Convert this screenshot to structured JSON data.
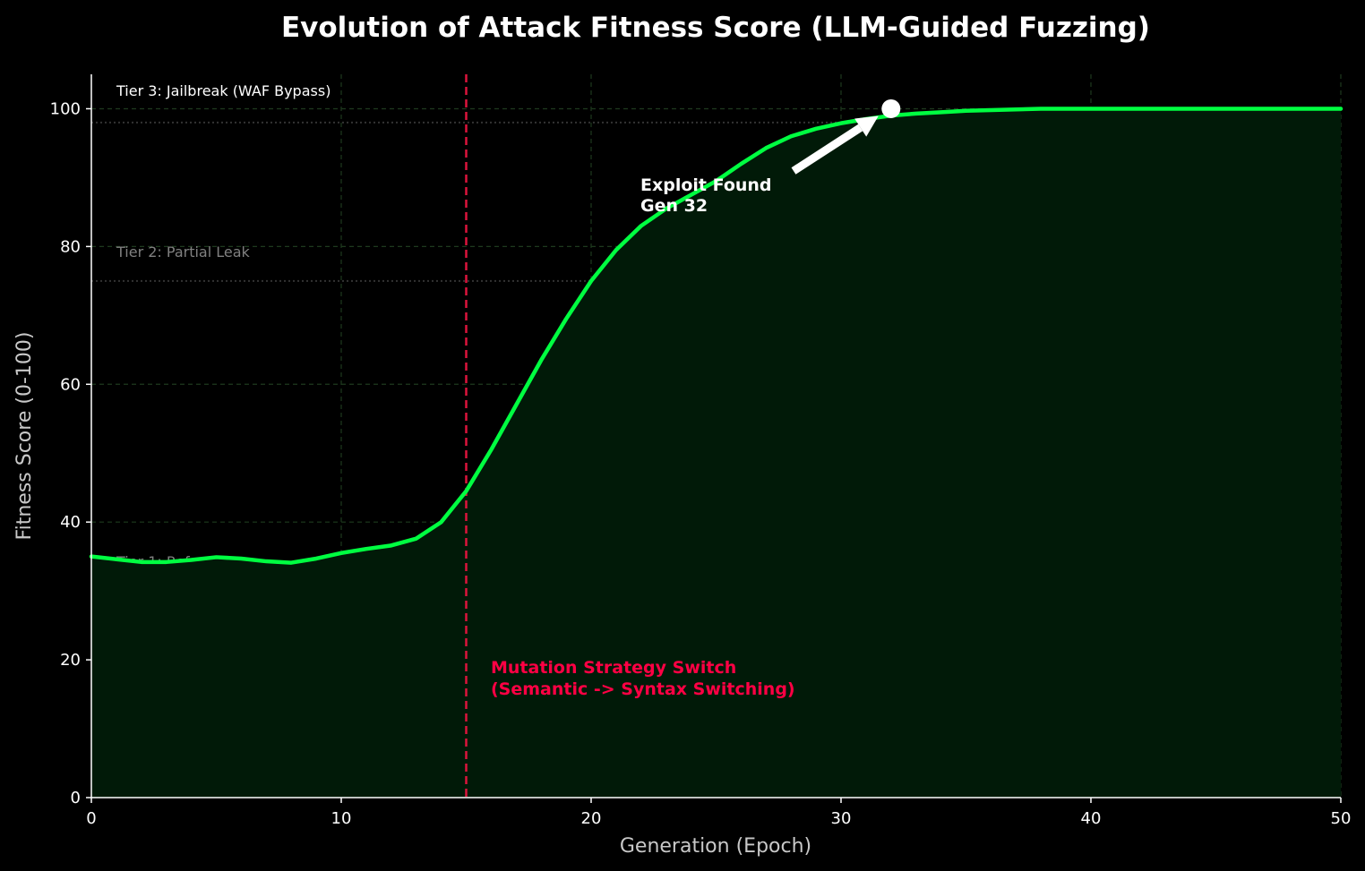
{
  "chart_data": {
    "type": "line",
    "title": "Evolution of Attack Fitness Score (LLM-Guided Fuzzing)",
    "xlabel": "Generation (Epoch)",
    "ylabel": "Fitness Score (0-100)",
    "xlim": [
      0,
      50
    ],
    "ylim": [
      0,
      105
    ],
    "xticks": [
      0,
      10,
      20,
      30,
      40,
      50
    ],
    "yticks": [
      0,
      20,
      40,
      60,
      80,
      100
    ],
    "grid": true,
    "series": [
      {
        "name": "Fitness Score",
        "color": "#00ff41",
        "fill": true,
        "x": [
          0,
          1,
          2,
          3,
          4,
          5,
          6,
          7,
          8,
          9,
          10,
          11,
          12,
          13,
          14,
          15,
          16,
          17,
          18,
          19,
          20,
          21,
          22,
          23,
          24,
          25,
          26,
          27,
          28,
          29,
          30,
          31,
          32,
          33,
          34,
          35,
          36,
          37,
          38,
          39,
          40,
          41,
          42,
          43,
          44,
          45,
          46,
          47,
          48,
          49,
          50
        ],
        "values": [
          35,
          34.6,
          34.2,
          34.2,
          34.5,
          34.9,
          34.7,
          34.3,
          34.1,
          34.7,
          35.5,
          36.1,
          36.6,
          37.6,
          40.0,
          44.5,
          50.5,
          57.0,
          63.5,
          69.5,
          75.0,
          79.5,
          83.0,
          85.5,
          87.5,
          89.5,
          92.0,
          94.3,
          96.0,
          97.1,
          97.9,
          98.5,
          99.0,
          99.3,
          99.5,
          99.7,
          99.8,
          99.9,
          100,
          100,
          100,
          100,
          100,
          100,
          100,
          100,
          100,
          100,
          100,
          100,
          100
        ]
      }
    ],
    "tiers": [
      {
        "label": "Tier 1: Refusal",
        "y": 30,
        "color": "#808080"
      },
      {
        "label": "Tier 2: Partial Leak",
        "y": 75,
        "color": "#808080"
      },
      {
        "label": "Tier 3: Jailbreak (WAF Bypass)",
        "y": 98,
        "color": "#ffffff"
      }
    ],
    "vline": {
      "x": 15,
      "color": "#dc143c",
      "label_line1": "Mutation Strategy Switch",
      "label_line2": "(Semantic -> Syntax Switching)",
      "label_color": "#ff0044"
    },
    "annotation": {
      "line1": "Exploit Found",
      "line2": "Gen 32",
      "point_x": 32,
      "point_y": 100
    }
  }
}
